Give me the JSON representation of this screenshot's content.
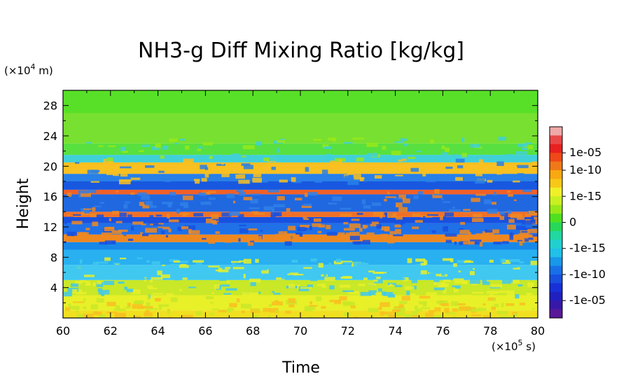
{
  "chart_data": {
    "type": "heatmap",
    "title": "NH3-g Diff Mixing Ratio [kg/kg]",
    "xlabel": "Time",
    "ylabel": "Height",
    "x_unit": "(×10^5 s)",
    "y_unit": "(×10^4 m)",
    "x_unit_parts": [
      "(×10",
      "5",
      " s)"
    ],
    "y_unit_parts": [
      "(×10",
      "4",
      " m)"
    ],
    "xlim": [
      60,
      80
    ],
    "ylim": [
      0,
      30
    ],
    "x_ticks": [
      60,
      62,
      64,
      66,
      68,
      70,
      72,
      74,
      76,
      78,
      80
    ],
    "y_ticks": [
      4,
      8,
      12,
      16,
      20,
      24,
      28
    ],
    "colorbar": {
      "tick_labels": [
        "1e-05",
        "1e-10",
        "1e-15",
        "0",
        "-1e-15",
        "-1e-10",
        "-1e-05"
      ],
      "levels": [
        {
          "label": "",
          "color": "#f0a8a8"
        },
        {
          "label": "",
          "color": "#e84848"
        },
        {
          "label": "1e-05",
          "color": "#e82020"
        },
        {
          "label": "",
          "color": "#f04818"
        },
        {
          "label": "1e-10",
          "color": "#f07818"
        },
        {
          "label": "",
          "color": "#f8a810"
        },
        {
          "label": "",
          "color": "#f8c818"
        },
        {
          "label": "1e-15",
          "color": "#f0f028"
        },
        {
          "label": "",
          "color": "#c8f020"
        },
        {
          "label": "",
          "color": "#98e818"
        },
        {
          "label": "0",
          "color": "#50e020"
        },
        {
          "label": "",
          "color": "#28d858"
        },
        {
          "label": "",
          "color": "#20d8a0"
        },
        {
          "label": "-1e-15",
          "color": "#20d0d0"
        },
        {
          "label": "",
          "color": "#20c0e8"
        },
        {
          "label": "",
          "color": "#1898e8"
        },
        {
          "label": "-1e-10",
          "color": "#1870e8"
        },
        {
          "label": "",
          "color": "#1850e0"
        },
        {
          "label": "",
          "color": "#1830d8"
        },
        {
          "label": "-1e-05",
          "color": "#2020c0"
        },
        {
          "label": "",
          "color": "#3818a8"
        },
        {
          "label": "",
          "color": "#581898"
        }
      ]
    },
    "bands": [
      {
        "y0": 0,
        "y1": 1,
        "color": "#f0e020"
      },
      {
        "y0": 1,
        "y1": 3,
        "color": "#e8f028"
      },
      {
        "y0": 3,
        "y1": 5,
        "color": "#c8e828"
      },
      {
        "y0": 5,
        "y1": 7,
        "color": "#40c8f0"
      },
      {
        "y0": 7,
        "y1": 9,
        "color": "#28b0f0"
      },
      {
        "y0": 9,
        "y1": 10,
        "color": "#1888e8"
      },
      {
        "y0": 10,
        "y1": 11,
        "color": "#f08820"
      },
      {
        "y0": 11,
        "y1": 12.5,
        "color": "#2070e8"
      },
      {
        "y0": 12.5,
        "y1": 13.3,
        "color": "#1850e0"
      },
      {
        "y0": 13.3,
        "y1": 14,
        "color": "#f07028"
      },
      {
        "y0": 14,
        "y1": 16.3,
        "color": "#2068e0"
      },
      {
        "y0": 16.3,
        "y1": 16.9,
        "color": "#f06028"
      },
      {
        "y0": 16.9,
        "y1": 18,
        "color": "#1858e0"
      },
      {
        "y0": 18,
        "y1": 19,
        "color": "#2880e8"
      },
      {
        "y0": 19,
        "y1": 20.5,
        "color": "#f8c020"
      },
      {
        "y0": 20.5,
        "y1": 21.5,
        "color": "#40d0d8"
      },
      {
        "y0": 21.5,
        "y1": 23,
        "color": "#58e040"
      },
      {
        "y0": 23,
        "y1": 27,
        "color": "#78e030"
      },
      {
        "y0": 27,
        "y1": 30,
        "color": "#58e028"
      }
    ]
  }
}
